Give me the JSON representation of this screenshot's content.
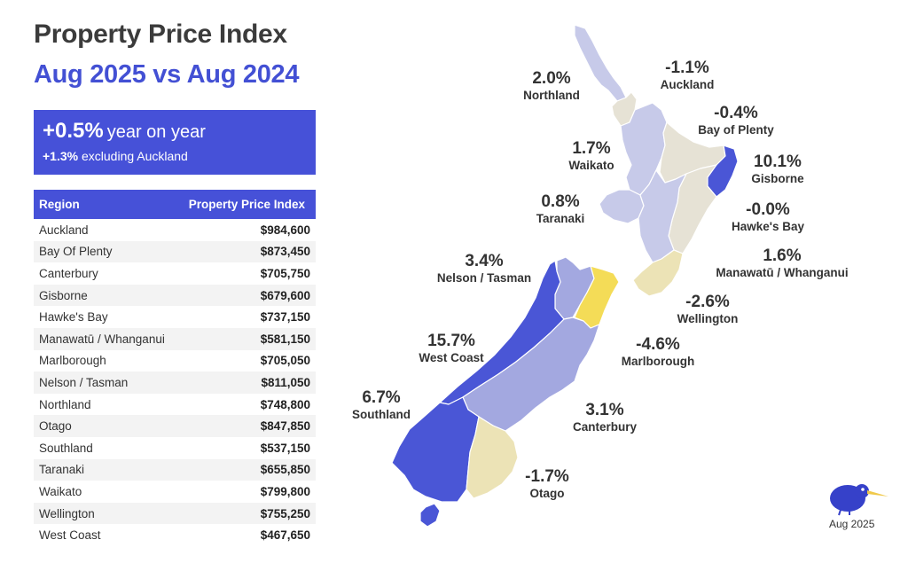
{
  "title": "Property Price Index",
  "subtitle": "Aug 2025 vs Aug 2024",
  "yoy": {
    "value": "+0.5%",
    "text": "year on year",
    "ex_value": "+1.3%",
    "ex_text": "excluding Auckland"
  },
  "table": {
    "headers": [
      "Region",
      "Property Price Index"
    ],
    "rows": [
      {
        "region": "Auckland",
        "value": "$984,600"
      },
      {
        "region": "Bay Of Plenty",
        "value": "$873,450"
      },
      {
        "region": "Canterbury",
        "value": "$705,750"
      },
      {
        "region": "Gisborne",
        "value": "$679,600"
      },
      {
        "region": "Hawke's Bay",
        "value": "$737,150"
      },
      {
        "region": "Manawatū / Whanganui",
        "value": "$581,150"
      },
      {
        "region": "Marlborough",
        "value": "$705,050"
      },
      {
        "region": "Nelson / Tasman",
        "value": "$811,050"
      },
      {
        "region": "Northland",
        "value": "$748,800"
      },
      {
        "region": "Otago",
        "value": "$847,850"
      },
      {
        "region": "Southland",
        "value": "$537,150"
      },
      {
        "region": "Taranaki",
        "value": "$655,850"
      },
      {
        "region": "Waikato",
        "value": "$799,800"
      },
      {
        "region": "Wellington",
        "value": "$755,250"
      },
      {
        "region": "West Coast",
        "value": "$467,650"
      }
    ]
  },
  "map_labels": [
    {
      "id": "northland",
      "pct": "2.0%",
      "name": "Northland"
    },
    {
      "id": "auckland",
      "pct": "-1.1%",
      "name": "Auckland"
    },
    {
      "id": "bop",
      "pct": "-0.4%",
      "name": "Bay of Plenty"
    },
    {
      "id": "waikato",
      "pct": "1.7%",
      "name": "Waikato"
    },
    {
      "id": "gisborne",
      "pct": "10.1%",
      "name": "Gisborne"
    },
    {
      "id": "taranaki",
      "pct": "0.8%",
      "name": "Taranaki"
    },
    {
      "id": "hawkes",
      "pct": "-0.0%",
      "name": "Hawke's Bay"
    },
    {
      "id": "manawatu",
      "pct": "1.6%",
      "name": "Manawatū / Whanganui"
    },
    {
      "id": "nelson",
      "pct": "3.4%",
      "name": "Nelson / Tasman"
    },
    {
      "id": "wellington",
      "pct": "-2.6%",
      "name": "Wellington"
    },
    {
      "id": "westcoast",
      "pct": "15.7%",
      "name": "West Coast"
    },
    {
      "id": "marlborough",
      "pct": "-4.6%",
      "name": "Marlborough"
    },
    {
      "id": "southland",
      "pct": "6.7%",
      "name": "Southland"
    },
    {
      "id": "canterbury",
      "pct": "3.1%",
      "name": "Canterbury"
    },
    {
      "id": "otago",
      "pct": "-1.7%",
      "name": "Otago"
    }
  ],
  "footer": {
    "date": "Aug 2025"
  },
  "icons": {
    "logo": "kiwi-icon"
  },
  "colors": {
    "accent": "#4651d8",
    "title": "#3b3b3b",
    "strong_positive": "#4a56d6",
    "positive": "#a3a8e0",
    "light_positive": "#c7cae9",
    "neutral": "#e6e2d5",
    "negative": "#ece3b6",
    "strong_negative": "#f4dc57"
  }
}
